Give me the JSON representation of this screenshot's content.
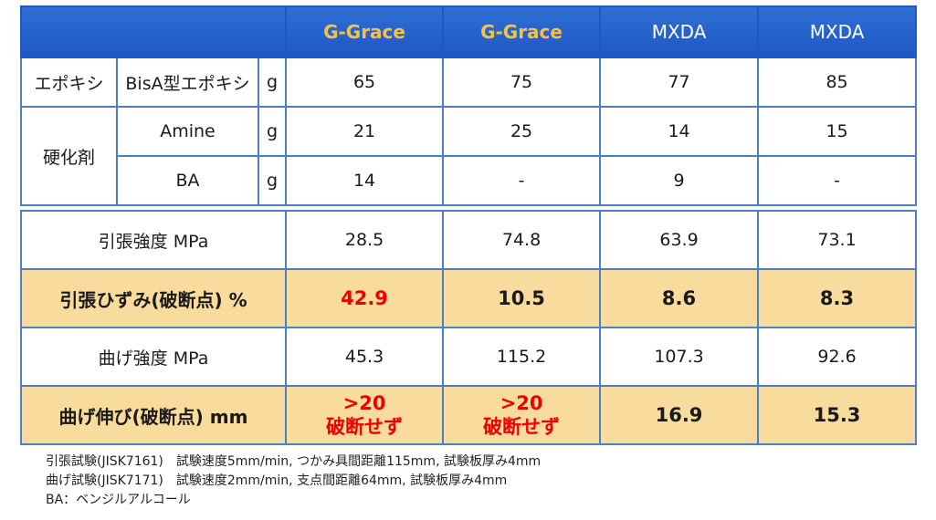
{
  "columns": [
    "G-Grace",
    "G-Grace",
    "MXDA",
    "MXDA"
  ],
  "composition": {
    "epoxy": {
      "group": "エポキシ",
      "name": "BisA型エポキシ",
      "unit": "g",
      "values": [
        "65",
        "75",
        "77",
        "85"
      ]
    },
    "hardener_group": "硬化剤",
    "amine": {
      "name": "Amine",
      "unit": "g",
      "values": [
        "21",
        "25",
        "14",
        "15"
      ]
    },
    "ba": {
      "name": "BA",
      "unit": "g",
      "values": [
        "14",
        "-",
        "9",
        "-"
      ]
    }
  },
  "properties": {
    "tensile_strength": {
      "label": "引張強度 MPa",
      "values": [
        "28.5",
        "74.8",
        "63.9",
        "73.1"
      ]
    },
    "tensile_strain": {
      "label": "引張ひずみ(破断点) %",
      "values": [
        "42.9",
        "10.5",
        "8.6",
        "8.3"
      ]
    },
    "flexural_strength": {
      "label": "曲げ強度 MPa",
      "values": [
        "45.3",
        "115.2",
        "107.3",
        "92.6"
      ]
    },
    "flexural_elongation": {
      "label": "曲げ伸び(破断点) mm",
      "values": [
        {
          "line1": ">20",
          "line2": "破断せず"
        },
        {
          "line1": ">20",
          "line2": "破断せず"
        },
        {
          "line1": "16.9"
        },
        {
          "line1": "15.3"
        }
      ]
    }
  },
  "notes": [
    "引張試験(JISK7161)　試験速度5mm/min, つかみ具間距離115mm, 試験板厚み4mm",
    "曲げ試験(JISK7171)　試験速度2mm/min, 支点間距離64mm, 試験板厚み4mm",
    "BA：ベンジルアルコール"
  ],
  "colors": {
    "header_bg": "#2463cf",
    "header_gold": "#f6c244",
    "highlight_bg": "#fadb9e",
    "accent_red": "#ee0000",
    "grid": "#4a7fc1"
  }
}
